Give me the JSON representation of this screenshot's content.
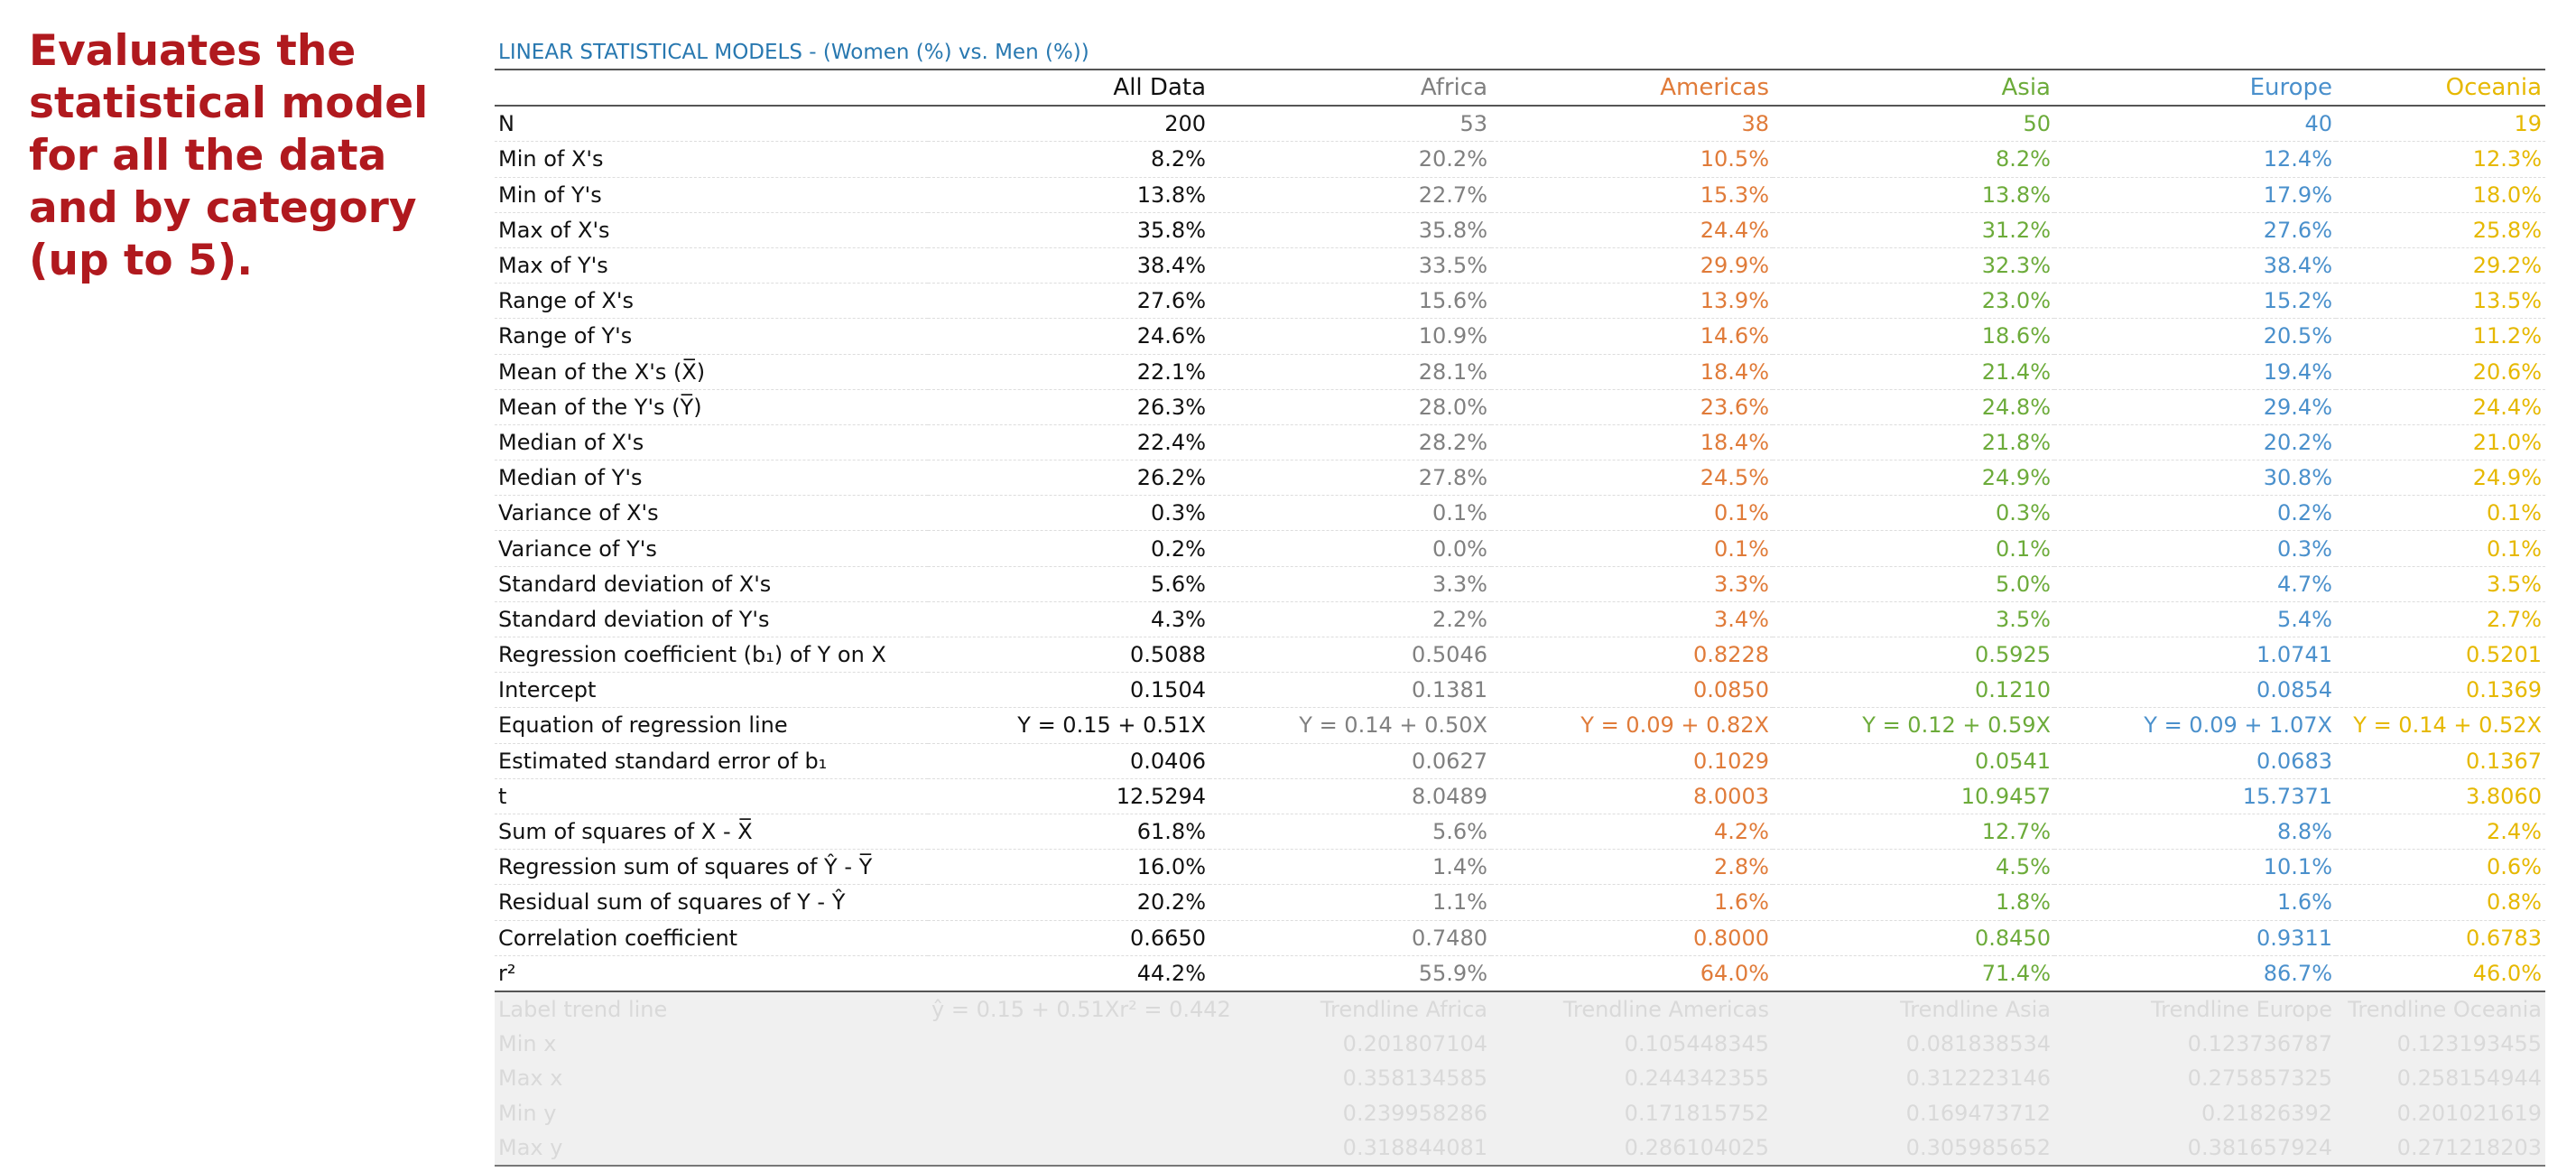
{
  "side_note": "Evaluates the statistical model for all the data and by category (up to 5).",
  "table_title": "LINEAR STATISTICAL MODELS - (Women (%) vs. Men (%))",
  "columns": [
    "All Data",
    "Africa",
    "Americas",
    "Asia",
    "Europe",
    "Oceania"
  ],
  "colors": {
    "all": "#111111",
    "africa": "#808080",
    "americas": "#e07b39",
    "asia": "#6cab3a",
    "europe": "#4a90cc",
    "oceania": "#e6b800",
    "title": "#2878b0",
    "note": "#b0191e"
  },
  "rows": [
    {
      "label": "N",
      "values": [
        "200",
        "53",
        "38",
        "50",
        "40",
        "19"
      ]
    },
    {
      "label": "Min of X's",
      "values": [
        "8.2%",
        "20.2%",
        "10.5%",
        "8.2%",
        "12.4%",
        "12.3%"
      ]
    },
    {
      "label": "Min of Y's",
      "values": [
        "13.8%",
        "22.7%",
        "15.3%",
        "13.8%",
        "17.9%",
        "18.0%"
      ]
    },
    {
      "label": "Max of X's",
      "values": [
        "35.8%",
        "35.8%",
        "24.4%",
        "31.2%",
        "27.6%",
        "25.8%"
      ]
    },
    {
      "label": "Max of Y's",
      "values": [
        "38.4%",
        "33.5%",
        "29.9%",
        "32.3%",
        "38.4%",
        "29.2%"
      ]
    },
    {
      "label": "Range of X's",
      "values": [
        "27.6%",
        "15.6%",
        "13.9%",
        "23.0%",
        "15.2%",
        "13.5%"
      ]
    },
    {
      "label": "Range of Y's",
      "values": [
        "24.6%",
        "10.9%",
        "14.6%",
        "18.6%",
        "20.5%",
        "11.2%"
      ]
    },
    {
      "label": "Mean of the X's (X̅)",
      "values": [
        "22.1%",
        "28.1%",
        "18.4%",
        "21.4%",
        "19.4%",
        "20.6%"
      ]
    },
    {
      "label": "Mean of the Y's (Y̅)",
      "values": [
        "26.3%",
        "28.0%",
        "23.6%",
        "24.8%",
        "29.4%",
        "24.4%"
      ]
    },
    {
      "label": "Median of X's",
      "values": [
        "22.4%",
        "28.2%",
        "18.4%",
        "21.8%",
        "20.2%",
        "21.0%"
      ]
    },
    {
      "label": "Median of Y's",
      "values": [
        "26.2%",
        "27.8%",
        "24.5%",
        "24.9%",
        "30.8%",
        "24.9%"
      ]
    },
    {
      "label": "Variance of X's",
      "values": [
        "0.3%",
        "0.1%",
        "0.1%",
        "0.3%",
        "0.2%",
        "0.1%"
      ]
    },
    {
      "label": "Variance of Y's",
      "values": [
        "0.2%",
        "0.0%",
        "0.1%",
        "0.1%",
        "0.3%",
        "0.1%"
      ]
    },
    {
      "label": "Standard deviation of X's",
      "values": [
        "5.6%",
        "3.3%",
        "3.3%",
        "5.0%",
        "4.7%",
        "3.5%"
      ]
    },
    {
      "label": "Standard deviation of Y's",
      "values": [
        "4.3%",
        "2.2%",
        "3.4%",
        "3.5%",
        "5.4%",
        "2.7%"
      ]
    },
    {
      "label": "Regression coefficient (b₁) of Y on X",
      "values": [
        "0.5088",
        "0.5046",
        "0.8228",
        "0.5925",
        "1.0741",
        "0.5201"
      ]
    },
    {
      "label": "Intercept",
      "values": [
        "0.1504",
        "0.1381",
        "0.0850",
        "0.1210",
        "0.0854",
        "0.1369"
      ]
    },
    {
      "label": "Equation of regression line",
      "values": [
        "Y = 0.15 + 0.51X",
        "Y = 0.14 + 0.50X",
        "Y = 0.09 + 0.82X",
        "Y = 0.12 + 0.59X",
        "Y = 0.09 + 1.07X",
        "Y = 0.14 + 0.52X"
      ]
    },
    {
      "label": "Estimated standard error of b₁",
      "values": [
        "0.0406",
        "0.0627",
        "0.1029",
        "0.0541",
        "0.0683",
        "0.1367"
      ]
    },
    {
      "label": "t",
      "values": [
        "12.5294",
        "8.0489",
        "8.0003",
        "10.9457",
        "15.7371",
        "3.8060"
      ]
    },
    {
      "label": "Sum of squares of X - X̅",
      "values": [
        "61.8%",
        "5.6%",
        "4.2%",
        "12.7%",
        "8.8%",
        "2.4%"
      ]
    },
    {
      "label": "Regression sum of squares of Ŷ - Y̅",
      "values": [
        "16.0%",
        "1.4%",
        "2.8%",
        "4.5%",
        "10.1%",
        "0.6%"
      ]
    },
    {
      "label": "Residual sum of squares of Y - Ŷ",
      "values": [
        "20.2%",
        "1.1%",
        "1.6%",
        "1.8%",
        "1.6%",
        "0.8%"
      ]
    },
    {
      "label": "Correlation coefficient",
      "values": [
        "0.6650",
        "0.7480",
        "0.8000",
        "0.8450",
        "0.9311",
        "0.6783"
      ]
    },
    {
      "label": "r²",
      "values": [
        "44.2%",
        "55.9%",
        "64.0%",
        "71.4%",
        "86.7%",
        "46.0%"
      ]
    }
  ],
  "helper_rows": [
    {
      "label": "Label trend line",
      "values": [
        "ŷ = 0.15 + 0.51Xr² = 0.442",
        "Trendline Africa",
        "Trendline Americas",
        "Trendline Asia",
        "Trendline Europe",
        "Trendline Oceania"
      ]
    },
    {
      "label": "Min x",
      "values": [
        "",
        "0.201807104",
        "0.105448345",
        "0.081838534",
        "0.123736787",
        "0.123193455"
      ]
    },
    {
      "label": "Max x",
      "values": [
        "",
        "0.358134585",
        "0.244342355",
        "0.312223146",
        "0.275857325",
        "0.258154944"
      ]
    },
    {
      "label": "Min y",
      "values": [
        "",
        "0.239958286",
        "0.171815752",
        "0.169473712",
        "0.21826392",
        "0.201021619"
      ]
    },
    {
      "label": "Max y",
      "values": [
        "",
        "0.318844081",
        "0.286104025",
        "0.305985652",
        "0.381657924",
        "0.271218203"
      ]
    }
  ]
}
